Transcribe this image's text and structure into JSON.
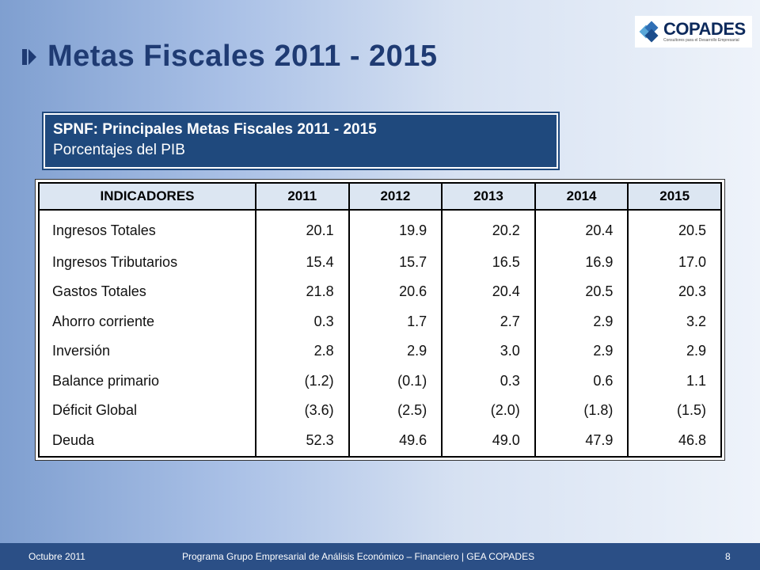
{
  "slide": {
    "title": "Metas Fiscales 2011 - 2015",
    "box_title": "SPNF: Principales Metas Fiscales 2011 - 2015",
    "box_subtitle": "Porcentajes del PIB"
  },
  "logo": {
    "name": "COPADES",
    "tagline": "Consultores para el Desarrollo Empresarial"
  },
  "table": {
    "headers": [
      "INDICADORES",
      "2011",
      "2012",
      "2013",
      "2014",
      "2015"
    ],
    "rows": [
      [
        "Ingresos Totales",
        "20.1",
        "19.9",
        "20.2",
        "20.4",
        "20.5"
      ],
      [
        "Ingresos Tributarios",
        "15.4",
        "15.7",
        "16.5",
        "16.9",
        "17.0"
      ],
      [
        "Gastos Totales",
        "21.8",
        "20.6",
        "20.4",
        "20.5",
        "20.3"
      ],
      [
        "Ahorro corriente",
        "0.3",
        "1.7",
        "2.7",
        "2.9",
        "3.2"
      ],
      [
        "Inversión",
        "2.8",
        "2.9",
        "3.0",
        "2.9",
        "2.9"
      ],
      [
        "Balance primario",
        "(1.2)",
        "(0.1)",
        "0.3",
        "0.6",
        "1.1"
      ],
      [
        "Déficit Global",
        "(3.6)",
        "(2.5)",
        "(2.0)",
        "(1.8)",
        "(1.5)"
      ],
      [
        "Deuda",
        "52.3",
        "49.6",
        "49.0",
        "47.9",
        "46.8"
      ]
    ]
  },
  "footer": {
    "date": "Octubre 2011",
    "program": "Programa Grupo Empresarial de Análisis Económico – Financiero | GEA COPADES",
    "page": "8"
  },
  "colors": {
    "primary": "#1f3b73",
    "box": "#1f497d",
    "header_fill": "#dce6f2",
    "footer": "#2b4f86"
  }
}
